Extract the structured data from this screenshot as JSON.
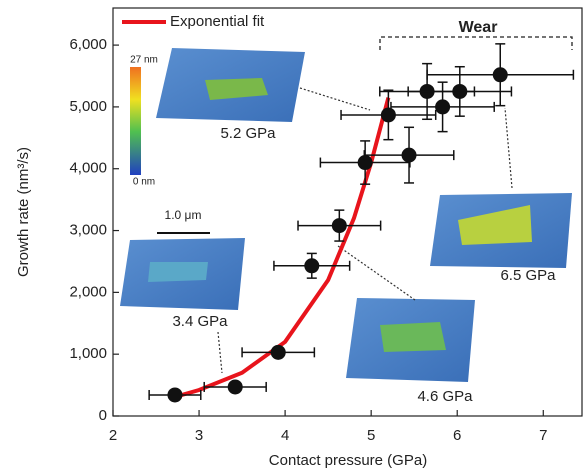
{
  "chart_data": {
    "type": "scatter",
    "x_label": "Contact pressure (GPa)",
    "y_label": "Growth rate (nm³/s)",
    "xlim": [
      2,
      7.45
    ],
    "ylim": [
      0,
      6600
    ],
    "xticks": [
      2,
      3,
      4,
      5,
      6,
      7
    ],
    "yticks": [
      0,
      {
        "value": 1000,
        "label": "1,000"
      },
      {
        "value": 2000,
        "label": "2,000"
      },
      {
        "value": 3000,
        "label": "3,000"
      },
      {
        "value": 4000,
        "label": "4,000"
      },
      {
        "value": 5000,
        "label": "5,000"
      },
      {
        "value": 6000,
        "label": "6,000"
      }
    ],
    "series": [
      {
        "name": "Exponential fit",
        "type": "line",
        "color": "#e8141c",
        "x": [
          2.7,
          3.0,
          3.5,
          4.0,
          4.5,
          4.8,
          5.0,
          5.2
        ],
        "values": [
          300,
          420,
          700,
          1200,
          2200,
          3200,
          4100,
          5150
        ]
      },
      {
        "type": "scatter",
        "color": "#111111",
        "x": [
          2.72,
          3.42,
          3.92,
          4.31,
          4.63,
          4.93,
          5.44,
          5.2,
          5.65,
          5.83,
          6.03,
          6.5
        ],
        "values": [
          340,
          470,
          1030,
          2430,
          3080,
          4100,
          4220,
          4870,
          5250,
          5000,
          5250,
          5520
        ],
        "xerr": [
          0.3,
          0.36,
          0.42,
          0.44,
          0.48,
          0.52,
          0.52,
          0.55,
          0.55,
          0.6,
          0.6,
          0.85
        ],
        "yerr": [
          0,
          0,
          0,
          200,
          250,
          350,
          450,
          400,
          450,
          400,
          400,
          500
        ]
      }
    ],
    "annotations": [
      "Wear",
      "5.2 GPa",
      "3.4 GPa",
      "4.6 GPa",
      "6.5 GPa",
      "1.0 μm",
      "27 nm",
      "0 nm"
    ]
  }
}
